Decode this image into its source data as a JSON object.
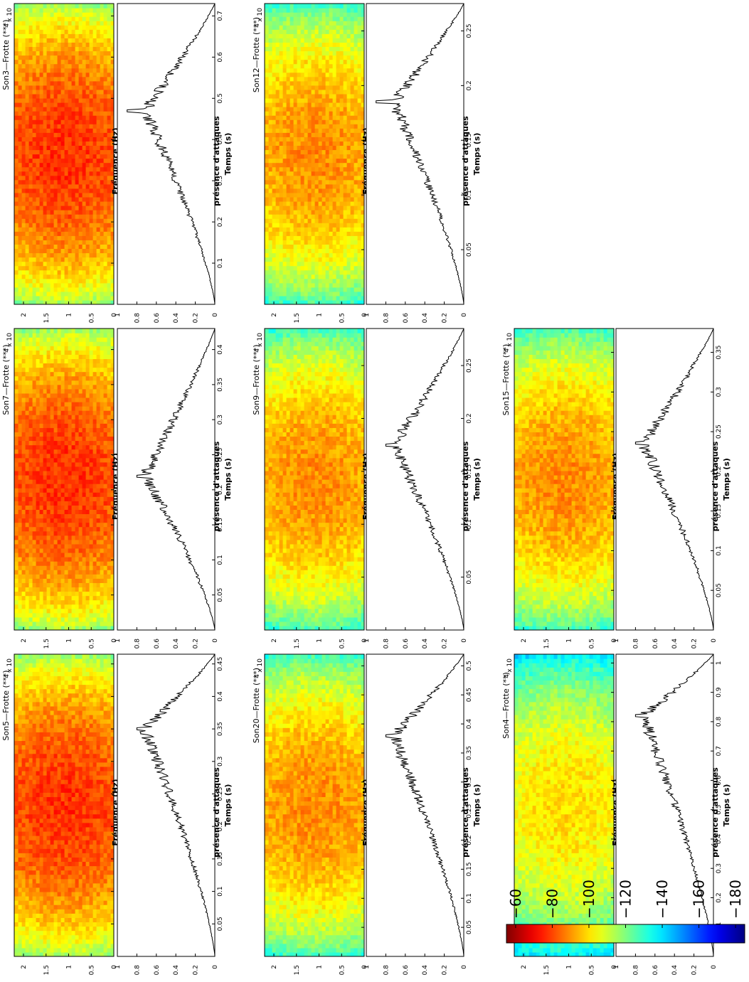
{
  "figure": {
    "orientation": "rotated-90-ccw",
    "freq_label": "Fréquence (Hz)",
    "onset_label": "présence d'attaques",
    "time_label": "Temps (s)",
    "freq_multiplier": "x 10",
    "freq_exponent": "4",
    "freq_ticks": [
      "0",
      "0.5",
      "1",
      "1.5",
      "2"
    ],
    "onset_ticks": [
      "0",
      "0.2",
      "0.4",
      "0.6",
      "0.8",
      "1"
    ]
  },
  "colorbar": {
    "ticks": [
      "−60",
      "−80",
      "−100",
      "−120",
      "−140",
      "−160",
      "−180"
    ],
    "range": [
      -185,
      -55
    ],
    "colormap": "jet"
  },
  "chart_data": [
    {
      "type": "heatmap+line",
      "title": "Son5—Frotte (***)",
      "xlabel": "Temps (s)",
      "ylabel_top": "Fréquence (Hz)",
      "ylabel_bottom": "présence d'attaques",
      "xlim": [
        0,
        0.465
      ],
      "xticks": [
        "0.05",
        "0.1",
        "0.15",
        "0.2",
        "0.25",
        "0.3",
        "0.35",
        "0.4",
        "0.45"
      ],
      "ylim_freq": [
        0,
        22050
      ],
      "ylim_onset": [
        0,
        1
      ],
      "spectrum_level": "high",
      "peak": {
        "t": 0.35,
        "value": 0.8
      }
    },
    {
      "type": "heatmap+line",
      "title": "Son7—Frotte (***)",
      "xlabel": "Temps (s)",
      "ylabel_top": "Fréquence (Hz)",
      "ylabel_bottom": "présence d'attaques",
      "xlim": [
        0,
        0.43
      ],
      "xticks": [
        "0.05",
        "0.1",
        "0.15",
        "0.2",
        "0.25",
        "0.3",
        "0.35",
        "0.4"
      ],
      "ylim_freq": [
        0,
        22050
      ],
      "ylim_onset": [
        0,
        1
      ],
      "spectrum_level": "high",
      "peak": {
        "t": 0.22,
        "value": 0.8
      }
    },
    {
      "type": "heatmap+line",
      "title": "Son3—Frotte (***)",
      "xlabel": "Temps (s)",
      "ylabel_top": "Fréquence (Hz)",
      "ylabel_bottom": "présence d'attaques",
      "xlim": [
        0,
        0.73
      ],
      "xticks": [
        "0.1",
        "0.2",
        "0.3",
        "0.4",
        "0.5",
        "0.6",
        "0.7"
      ],
      "ylim_freq": [
        0,
        22050
      ],
      "ylim_onset": [
        0,
        1
      ],
      "spectrum_level": "high",
      "peak": {
        "t": 0.47,
        "value": 0.9
      }
    },
    {
      "type": "heatmap+line",
      "title": "Son20—Frotte (***)",
      "xlabel": "Temps (s)",
      "ylabel_top": "Fréquence (Hz)",
      "ylabel_bottom": "présence d'attaques",
      "xlim": [
        0,
        0.52
      ],
      "xticks": [
        "0.05",
        "0.1",
        "0.15",
        "0.2",
        "0.25",
        "0.3",
        "0.35",
        "0.4",
        "0.45",
        "0.5"
      ],
      "ylim_freq": [
        0,
        22050
      ],
      "ylim_onset": [
        0,
        1
      ],
      "spectrum_level": "mid",
      "peak": {
        "t": 0.38,
        "value": 0.8
      }
    },
    {
      "type": "heatmap+line",
      "title": "Son9—Frotte (***)",
      "xlabel": "Temps (s)",
      "ylabel_top": "Fréquence (Hz)",
      "ylabel_bottom": "présence d'attaques",
      "xlim": [
        0,
        0.285
      ],
      "xticks": [
        "0.05",
        "0.1",
        "0.15",
        "0.2",
        "0.25"
      ],
      "ylim_freq": [
        0,
        22050
      ],
      "ylim_onset": [
        0,
        1
      ],
      "spectrum_level": "mid",
      "peak": {
        "t": 0.175,
        "value": 0.8
      }
    },
    {
      "type": "heatmap+line",
      "title": "Son12—Frotte (***)",
      "xlabel": "Temps (s)",
      "ylabel_top": "Fréquence (Hz)",
      "ylabel_bottom": "présence d'attaques",
      "xlim": [
        0,
        0.275
      ],
      "xticks": [
        "0.05",
        "0.1",
        "0.15",
        "0.2",
        "0.25"
      ],
      "ylim_freq": [
        0,
        22050
      ],
      "ylim_onset": [
        0,
        1
      ],
      "spectrum_level": "mid",
      "peak": {
        "t": 0.185,
        "value": 0.9
      }
    },
    {
      "type": "heatmap+line",
      "title": "Son4—Frotte (**)",
      "xlabel": "Temps (s)",
      "ylabel_top": "Fréquence (Hz)",
      "ylabel_bottom": "présence d'attaques",
      "xlim": [
        0,
        1.03
      ],
      "xticks": [
        "0.1",
        "0.2",
        "0.3",
        "0.4",
        "0.5",
        "0.6",
        "0.7",
        "0.8",
        "0.9",
        "1"
      ],
      "ylim_freq": [
        0,
        22050
      ],
      "ylim_onset": [
        0,
        1
      ],
      "spectrum_level": "low",
      "peak": {
        "t": 0.82,
        "value": 0.8
      }
    },
    {
      "type": "heatmap+line",
      "title": "Son15—Frotte (**)",
      "xlabel": "Temps (s)",
      "ylabel_top": "Fréquence (Hz)",
      "ylabel_bottom": "présence d'attaques",
      "xlim": [
        0,
        0.38
      ],
      "xticks": [
        "0.05",
        "0.1",
        "0.15",
        "0.2",
        "0.25",
        "0.3",
        "0.35"
      ],
      "ylim_freq": [
        0,
        22050
      ],
      "ylim_onset": [
        0,
        1
      ],
      "spectrum_level": "mid",
      "peak": {
        "t": 0.235,
        "value": 0.8
      }
    }
  ]
}
